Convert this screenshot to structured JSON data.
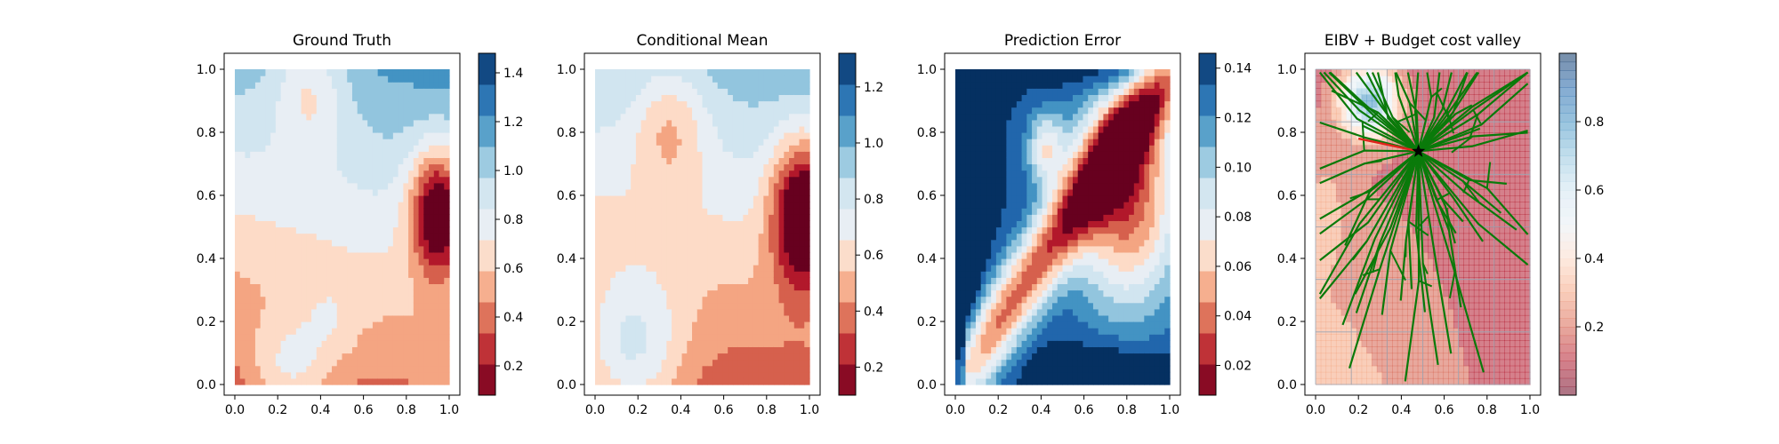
{
  "chart_data": [
    {
      "type": "heatmap",
      "title": "Ground Truth",
      "field": "ground_truth",
      "xlim": [
        0,
        1
      ],
      "ylim": [
        0,
        1
      ],
      "x_ticks": [
        "0.0",
        "0.2",
        "0.4",
        "0.6",
        "0.8",
        "1.0"
      ],
      "y_ticks": [
        "0.0",
        "0.2",
        "0.4",
        "0.6",
        "0.8",
        "1.0"
      ],
      "colorbar_range": [
        0.08,
        1.48
      ],
      "colorbar_ticks": [
        "0.2",
        "0.4",
        "0.6",
        "0.8",
        "1.0",
        "1.2",
        "1.4"
      ],
      "colorbar_tick_values": [
        0.2,
        0.4,
        0.6,
        0.8,
        1.0,
        1.2,
        1.4
      ]
    },
    {
      "type": "heatmap",
      "title": "Conditional Mean",
      "field": "conditional_mean",
      "xlim": [
        0,
        1
      ],
      "ylim": [
        0,
        1
      ],
      "x_ticks": [
        "0.0",
        "0.2",
        "0.4",
        "0.6",
        "0.8",
        "1.0"
      ],
      "y_ticks": [
        "0.0",
        "0.2",
        "0.4",
        "0.6",
        "0.8",
        "1.0"
      ],
      "colorbar_range": [
        0.1,
        1.32
      ],
      "colorbar_ticks": [
        "0.2",
        "0.4",
        "0.6",
        "0.8",
        "1.0",
        "1.2"
      ],
      "colorbar_tick_values": [
        0.2,
        0.4,
        0.6,
        0.8,
        1.0,
        1.2
      ]
    },
    {
      "type": "heatmap",
      "title": "Prediction Error",
      "field": "prediction_error",
      "xlim": [
        0,
        1
      ],
      "ylim": [
        0,
        1
      ],
      "x_ticks": [
        "0.0",
        "0.2",
        "0.4",
        "0.6",
        "0.8",
        "1.0"
      ],
      "y_ticks": [
        "0.0",
        "0.2",
        "0.4",
        "0.6",
        "0.8",
        "1.0"
      ],
      "colorbar_range": [
        0.008,
        0.146
      ],
      "colorbar_ticks": [
        "0.02",
        "0.04",
        "0.06",
        "0.08",
        "0.10",
        "0.12",
        "0.14"
      ],
      "colorbar_tick_values": [
        0.02,
        0.04,
        0.06,
        0.08,
        0.1,
        0.12,
        0.14
      ]
    },
    {
      "type": "heatmap",
      "title": "EIBV + Budget cost valley",
      "field": "cost_valley",
      "xlim": [
        0,
        1
      ],
      "ylim": [
        0,
        1
      ],
      "x_ticks": [
        "0.0",
        "0.2",
        "0.4",
        "0.6",
        "0.8",
        "1.0"
      ],
      "y_ticks": [
        "0.0",
        "0.2",
        "0.4",
        "0.6",
        "0.8",
        "1.0"
      ],
      "colorbar_range": [
        0.0,
        1.0
      ],
      "colorbar_ticks": [
        "0.2",
        "0.4",
        "0.6",
        "0.8"
      ],
      "colorbar_tick_values": [
        0.2,
        0.4,
        0.6,
        0.8
      ],
      "current_location": [
        0.48,
        0.74
      ],
      "selected_direction_end": [
        0.2,
        0.78
      ],
      "candidate_path_count": 60
    }
  ],
  "colors": {
    "palette": [
      "#67001f",
      "#b2182b",
      "#d6604d",
      "#f4a582",
      "#fddbc7",
      "#e8eef4",
      "#d1e5f0",
      "#92c5de",
      "#4393c3",
      "#2166ac",
      "#053061"
    ],
    "path": "#0a7a0a",
    "selected_path": "#e0241b",
    "marker": "#000000"
  }
}
